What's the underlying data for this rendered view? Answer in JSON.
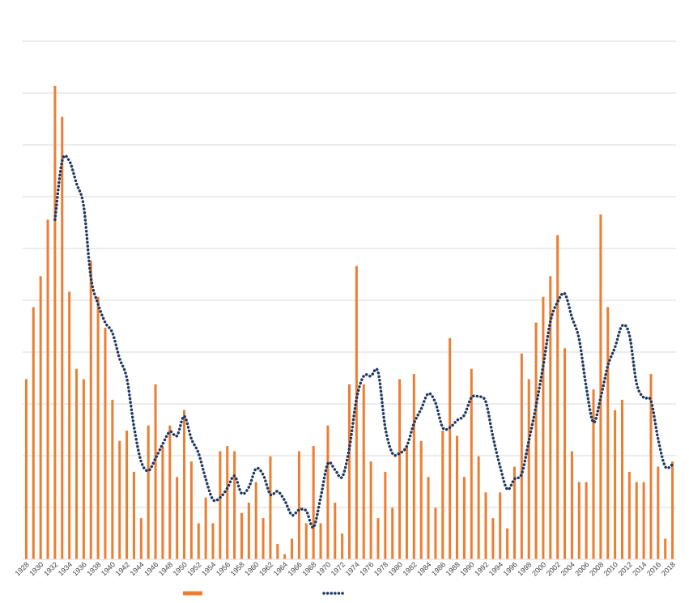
{
  "chart_data": {
    "type": "bar",
    "title": "",
    "xlabel": "",
    "ylabel": "",
    "grid": true,
    "legend_position": "bottom",
    "ylim": [
      0,
      92
    ],
    "categories": [
      1928,
      1929,
      1930,
      1931,
      1932,
      1933,
      1934,
      1935,
      1936,
      1937,
      1938,
      1939,
      1940,
      1941,
      1942,
      1943,
      1944,
      1945,
      1946,
      1947,
      1948,
      1949,
      1950,
      1951,
      1952,
      1953,
      1954,
      1955,
      1956,
      1957,
      1958,
      1959,
      1960,
      1961,
      1962,
      1963,
      1964,
      1965,
      1966,
      1967,
      1968,
      1969,
      1970,
      1971,
      1972,
      1973,
      1974,
      1975,
      1976,
      1977,
      1978,
      1979,
      1980,
      1981,
      1982,
      1983,
      1984,
      1985,
      1986,
      1987,
      1988,
      1989,
      1990,
      1991,
      1992,
      1993,
      1994,
      1995,
      1996,
      1997,
      1998,
      1999,
      2000,
      2001,
      2002,
      2003,
      2004,
      2005,
      2006,
      2007,
      2008,
      2009,
      2010,
      2011,
      2012,
      2013,
      2014,
      2015,
      2016,
      2017,
      2018
    ],
    "tick_labels": [
      "1928",
      "1930",
      "1932",
      "1934",
      "1936",
      "1938",
      "1940",
      "1942",
      "1944",
      "1946",
      "1948",
      "1950",
      "1952",
      "1954",
      "1956",
      "1958",
      "1960",
      "1962",
      "1964",
      "1966",
      "1968",
      "1970",
      "1972",
      "1974",
      "1976",
      "1978",
      "1980",
      "1982",
      "1984",
      "1986",
      "1988",
      "1990",
      "1992",
      "1994",
      "1996",
      "1998",
      "2000",
      "2002",
      "2004",
      "2006",
      "2008",
      "2010",
      "2012",
      "2014",
      "2016",
      "2018"
    ],
    "series": [
      {
        "kind": "bar",
        "color": "#ED7D31",
        "values": [
          35,
          49,
          55,
          66,
          92,
          86,
          52,
          37,
          35,
          58,
          51,
          45,
          31,
          23,
          25,
          17,
          8,
          26,
          34,
          22,
          26,
          16,
          29,
          19,
          7,
          12,
          7,
          21,
          22,
          21,
          9,
          11,
          15,
          8,
          20,
          3,
          1,
          4,
          21,
          7,
          22,
          7,
          26,
          11,
          5,
          34,
          57,
          34,
          19,
          8,
          17,
          10,
          35,
          22,
          36,
          23,
          16,
          10,
          25,
          43,
          24,
          16,
          37,
          20,
          13,
          8,
          13,
          6,
          18,
          40,
          35,
          46,
          51,
          55,
          63,
          41,
          21,
          15,
          15,
          33,
          67,
          49,
          29,
          31,
          17,
          15,
          15,
          36,
          18,
          4,
          19
        ]
      },
      {
        "kind": "moving-average",
        "color": "#1F3864",
        "style": "dotted",
        "values": [
          null,
          null,
          null,
          null,
          66,
          77.4,
          77.4,
          73,
          68.6,
          54.8,
          49.6,
          46,
          44,
          39,
          35.2,
          25.8,
          19,
          17.2,
          19.6,
          22.4,
          24.8,
          24,
          27.8,
          23.4,
          20.6,
          15.6,
          11.6,
          12,
          13.8,
          16.2,
          12.8,
          14,
          17.6,
          16.4,
          12.6,
          13.2,
          11.4,
          8.6,
          9.6,
          9.4,
          6.2,
          12,
          18.6,
          17.4,
          16,
          21.6,
          31.2,
          35.6,
          35.6,
          36.4,
          25.6,
          20.6,
          20.6,
          22,
          26.4,
          29.2,
          32.2,
          30.4,
          25.6,
          25.6,
          27,
          28,
          31.4,
          31.6,
          30.6,
          23.8,
          18,
          13.6,
          15.6,
          16.6,
          23,
          29.8,
          37.6,
          46.2,
          50,
          51.6,
          47,
          42.8,
          33.4,
          26.6,
          31.4,
          37.6,
          41.2,
          45.4,
          43.6,
          34.2,
          31.4,
          30.8,
          23.4,
          18,
          18.4
        ]
      }
    ]
  }
}
